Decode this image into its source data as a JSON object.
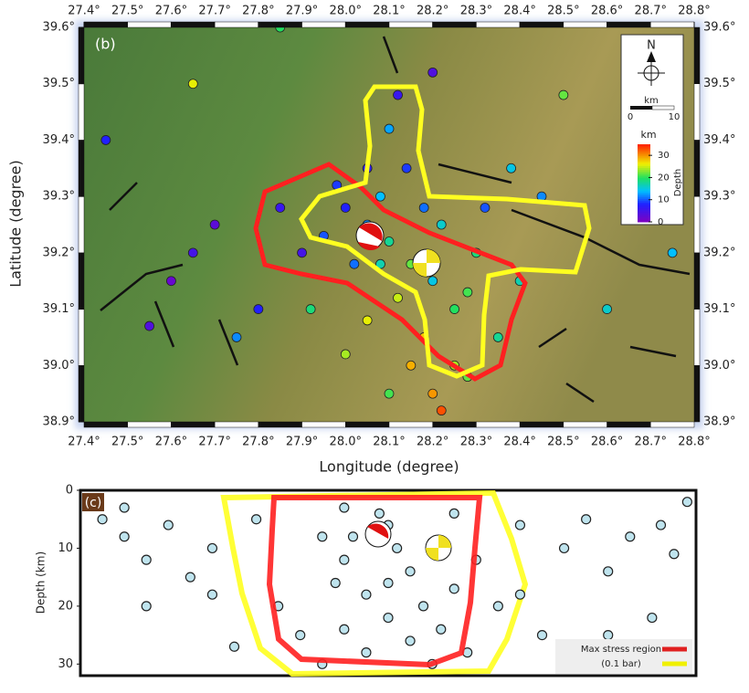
{
  "chart_data": [
    {
      "type": "scatter",
      "panel_label": "(b)",
      "xlabel": "Longitude (degree)",
      "ylabel": "Latitude (degree)",
      "xlim": [
        27.4,
        28.8
      ],
      "ylim": [
        38.9,
        39.6
      ],
      "xticks": [
        {
          "value": 27.4,
          "label": "27.4°"
        },
        {
          "value": 27.5,
          "label": "27.5°"
        },
        {
          "value": 27.6,
          "label": "27.6°"
        },
        {
          "value": 27.7,
          "label": "27.7°"
        },
        {
          "value": 27.8,
          "label": "27.8°"
        },
        {
          "value": 27.9,
          "label": "27.9°"
        },
        {
          "value": 28.0,
          "label": "28.0°"
        },
        {
          "value": 28.1,
          "label": "28.1°"
        },
        {
          "value": 28.2,
          "label": "28.2°"
        },
        {
          "value": 28.3,
          "label": "28.3°"
        },
        {
          "value": 28.4,
          "label": "28.4°"
        },
        {
          "value": 28.5,
          "label": "28.5°"
        },
        {
          "value": 28.6,
          "label": "28.6°"
        },
        {
          "value": 28.7,
          "label": "28.7°"
        },
        {
          "value": 28.8,
          "label": "28.8°"
        }
      ],
      "yticks": [
        {
          "value": 38.9,
          "label": "38.9°"
        },
        {
          "value": 39.0,
          "label": "39.0°"
        },
        {
          "value": 39.1,
          "label": "39.1°"
        },
        {
          "value": 39.2,
          "label": "39.2°"
        },
        {
          "value": 39.3,
          "label": "39.3°"
        },
        {
          "value": 39.4,
          "label": "39.4°"
        },
        {
          "value": 39.5,
          "label": "39.5°"
        },
        {
          "value": 39.6,
          "label": "39.6°"
        }
      ],
      "north_label": "N",
      "scale_unit": "km",
      "scale_ticks": [
        0,
        10
      ],
      "colorbar": {
        "unit": "km",
        "label": "Depth",
        "clim": [
          0,
          35
        ],
        "ticks": [
          0,
          10,
          20,
          30
        ]
      },
      "x": [
        28.05,
        28.1,
        28.15,
        28.2,
        28.0,
        27.95,
        28.12,
        28.25,
        28.18,
        28.08,
        28.22,
        28.3,
        27.9,
        28.02,
        28.14,
        28.1,
        28.12,
        28.2,
        27.7,
        27.65,
        27.6,
        27.55,
        27.8,
        28.25,
        28.2,
        28.28,
        28.35,
        28.4,
        28.45,
        28.5,
        28.6,
        28.75,
        27.45,
        27.65,
        27.85,
        28.05,
        28.15,
        28.1,
        28.0,
        27.92,
        28.32,
        28.05,
        28.18,
        28.28,
        28.08,
        27.98,
        27.85,
        28.38,
        27.75,
        28.22
      ],
      "y": [
        39.25,
        39.22,
        39.18,
        39.15,
        39.28,
        39.23,
        39.12,
        39.1,
        39.05,
        39.3,
        39.25,
        39.2,
        39.2,
        39.18,
        39.35,
        39.42,
        39.48,
        39.52,
        39.25,
        39.2,
        39.15,
        39.07,
        39.1,
        39.0,
        38.95,
        38.98,
        39.05,
        39.15,
        39.3,
        39.48,
        39.1,
        39.2,
        39.4,
        39.5,
        39.6,
        39.08,
        39.0,
        38.95,
        39.02,
        39.1,
        39.28,
        39.35,
        39.28,
        39.13,
        39.18,
        39.32,
        39.28,
        39.35,
        39.05,
        38.92
      ],
      "depth": [
        12,
        18,
        22,
        15,
        8,
        10,
        25,
        20,
        28,
        14,
        16,
        19,
        5,
        11,
        9,
        13,
        6,
        4,
        3,
        5,
        2,
        4,
        8,
        24,
        30,
        22,
        18,
        17,
        12,
        22,
        16,
        14,
        8,
        26,
        20,
        26,
        29,
        21,
        24,
        19,
        10,
        7,
        11,
        21,
        17,
        9,
        6,
        15,
        12,
        33
      ]
    },
    {
      "type": "scatter",
      "panel_label": "(c)",
      "ylabel": "Depth (km)",
      "xlim": [
        27.4,
        28.8
      ],
      "ylim": [
        0,
        32
      ],
      "yticks": [
        0,
        10,
        20,
        30
      ],
      "legend": [
        {
          "name": "Max stress region",
          "color": "#e02020"
        },
        {
          "name": "(0.1 bar)",
          "color": "#f0f000"
        }
      ],
      "x": [
        27.45,
        27.5,
        27.55,
        27.6,
        27.65,
        27.7,
        27.8,
        27.85,
        27.9,
        27.95,
        28.0,
        28.0,
        28.05,
        28.05,
        28.1,
        28.1,
        28.15,
        28.15,
        28.2,
        28.2,
        28.25,
        28.25,
        28.1,
        28.0,
        27.95,
        28.3,
        28.35,
        28.4,
        28.45,
        28.5,
        28.55,
        28.6,
        28.65,
        28.7,
        28.75,
        28.78,
        27.75,
        27.7,
        27.55,
        28.12,
        28.08,
        28.18,
        28.22,
        28.02,
        27.98,
        28.28,
        28.4,
        28.6,
        27.5,
        28.72
      ],
      "depth": [
        5,
        8,
        12,
        6,
        15,
        10,
        5,
        20,
        25,
        8,
        3,
        12,
        18,
        28,
        6,
        22,
        14,
        26,
        9,
        30,
        17,
        4,
        16,
        24,
        30,
        12,
        20,
        6,
        25,
        10,
        5,
        14,
        8,
        22,
        11,
        2,
        27,
        18,
        20,
        10,
        4,
        20,
        24,
        8,
        16,
        28,
        18,
        25,
        3,
        6
      ]
    }
  ]
}
